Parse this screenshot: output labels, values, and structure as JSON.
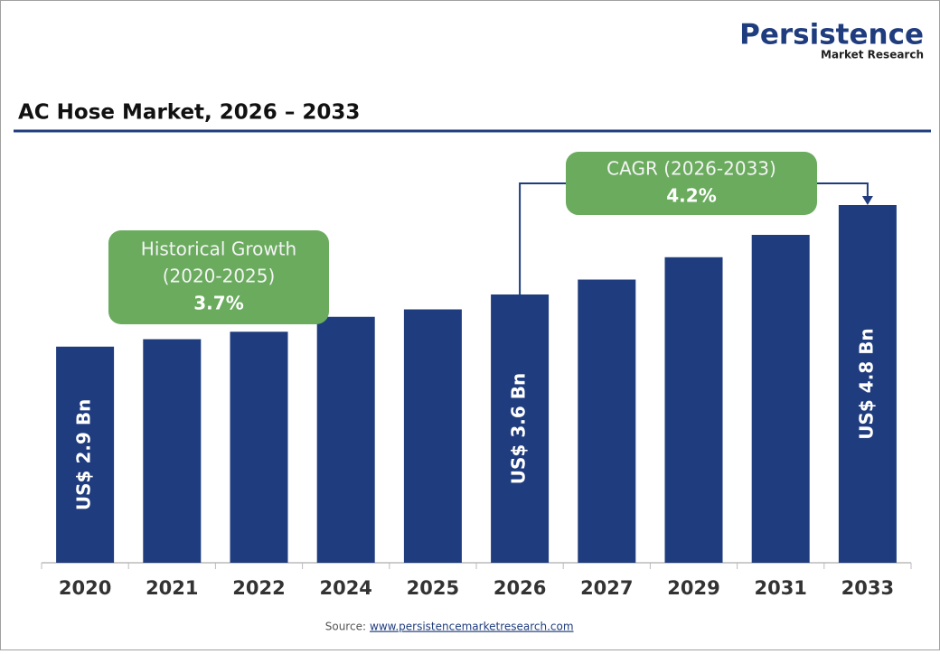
{
  "logo": {
    "name": "Persistence",
    "tagline": "Market Research"
  },
  "source": {
    "label": "Source:",
    "link": "www.persistencemarketresearch.com"
  },
  "chart_data": {
    "type": "bar",
    "title": "AC Hose Market, 2026 – 2033",
    "categories": [
      "2020",
      "2021",
      "2022",
      "2024",
      "2025",
      "2026",
      "2027",
      "2029",
      "2031",
      "2033"
    ],
    "values": [
      2.9,
      3.0,
      3.1,
      3.3,
      3.4,
      3.6,
      3.8,
      4.1,
      4.4,
      4.8
    ],
    "value_labels": [
      "US$ 2.9 Bn",
      null,
      null,
      null,
      null,
      "US$ 3.6 Bn",
      null,
      null,
      null,
      "US$ 4.8 Bn"
    ],
    "color": "#1f3c7e",
    "annotations": [
      {
        "lines": [
          "Historical Growth",
          "(2020-2025)",
          "3.7%"
        ],
        "color": "#6aab5e"
      },
      {
        "lines": [
          "CAGR (2026-2033)",
          "4.2%"
        ],
        "color": "#6aab5e"
      }
    ]
  }
}
